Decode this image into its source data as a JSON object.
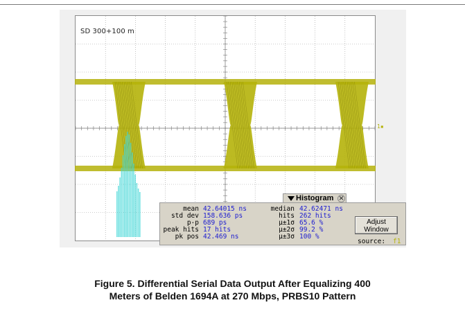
{
  "scope": {
    "label": "SD 300+100 m",
    "trigger_marker": "1▪",
    "colors": {
      "waveform": "#b5b20a",
      "histogram": "#43d7d7",
      "value_text": "#1c1cd0"
    }
  },
  "histogram": {
    "title": "Histogram",
    "close_icon": "close-icon",
    "left_stats": [
      {
        "label": "mean",
        "value": "42.64015 ns"
      },
      {
        "label": "std dev",
        "value": "158.636 ps"
      },
      {
        "label": "p-p",
        "value": "689 ps"
      },
      {
        "label": "peak hits",
        "value": "17 hits"
      },
      {
        "label": "pk pos",
        "value": "42.469 ns"
      }
    ],
    "right_stats": [
      {
        "label": "median",
        "value": "42.62471 ns"
      },
      {
        "label": "hits",
        "value": "262 hits"
      },
      {
        "label": "μ±1σ",
        "value": "65.6 %"
      },
      {
        "label": "μ±2σ",
        "value": "99.2 %"
      },
      {
        "label": "μ±3σ",
        "value": "100 %"
      }
    ],
    "adjust_button_line1": "Adjust",
    "adjust_button_line2": "Window",
    "source_label": "source:",
    "source_value": "f1"
  },
  "caption": {
    "line1": "Figure 5. Differential Serial Data Output After Equalizing 400",
    "line2": "Meters of Belden 1694A at 270 Mbps, PRBS10 Pattern"
  }
}
